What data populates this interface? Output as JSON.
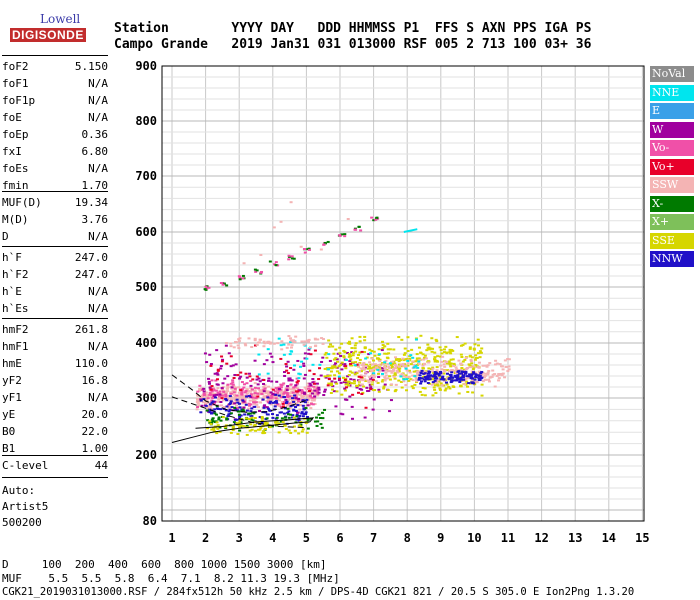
{
  "logo": {
    "brand": "Lowell",
    "product": "DIGISONDE"
  },
  "header": {
    "labels_line": "Station        YYYY DAY   DDD HHMMSS P1  FFS S AXN PPS IGA PS",
    "values_line": "Campo Grande   2019 Jan31 031 013000 RSF 005 2 713 100 03+ 36"
  },
  "params": {
    "group1": [
      {
        "name": "foF2",
        "value": "5.150"
      },
      {
        "name": "foF1",
        "value": "N/A"
      },
      {
        "name": "foF1p",
        "value": "N/A"
      },
      {
        "name": "foE",
        "value": "N/A"
      },
      {
        "name": "foEp",
        "value": "0.36"
      },
      {
        "name": "fxI",
        "value": "6.80"
      },
      {
        "name": "foEs",
        "value": "N/A"
      },
      {
        "name": "fmin",
        "value": "1.70"
      }
    ],
    "group2": [
      {
        "name": "MUF(D)",
        "value": "19.34"
      },
      {
        "name": "M(D)",
        "value": "3.76"
      },
      {
        "name": "D",
        "value": "N/A"
      }
    ],
    "group3": [
      {
        "name": "h`F",
        "value": "247.0"
      },
      {
        "name": "h`F2",
        "value": "247.0"
      },
      {
        "name": "h`E",
        "value": "N/A"
      },
      {
        "name": "h`Es",
        "value": "N/A"
      }
    ],
    "group4": [
      {
        "name": "hmF2",
        "value": "261.8"
      },
      {
        "name": "hmF1",
        "value": "N/A"
      },
      {
        "name": "hmE",
        "value": "110.0"
      },
      {
        "name": "yF2",
        "value": "16.8"
      },
      {
        "name": "yF1",
        "value": "N/A"
      },
      {
        "name": "yE",
        "value": "20.0"
      },
      {
        "name": "B0",
        "value": "22.0"
      },
      {
        "name": "B1",
        "value": "1.00"
      }
    ],
    "group5": [
      {
        "name": "C-level",
        "value": "44"
      }
    ],
    "auto": [
      "Auto:",
      "Artist5",
      "500200"
    ]
  },
  "legend": [
    {
      "label": "NoVal",
      "color": "#8c8c8c"
    },
    {
      "label": "NNE",
      "color": "#00e5ee"
    },
    {
      "label": "E",
      "color": "#3aa0e8"
    },
    {
      "label": "W",
      "color": "#a0009e"
    },
    {
      "label": "Vo-",
      "color": "#f050a8"
    },
    {
      "label": "Vo+",
      "color": "#e8002a"
    },
    {
      "label": "SSW",
      "color": "#f4b4b4"
    },
    {
      "label": "X-",
      "color": "#007a00"
    },
    {
      "label": "X+",
      "color": "#7ec05a"
    },
    {
      "label": "SSE",
      "color": "#d6d600"
    },
    {
      "label": "NNW",
      "color": "#2010c8"
    }
  ],
  "footer": {
    "line1": "D     100  200  400  600  800 1000 1500 3000 [km]",
    "line2": "MUF    5.5  5.5  5.8  6.4  7.1  8.2 11.3 19.3 [MHz]",
    "line3": "CGK21_2019031013000.RSF / 284fx512h 50 kHz 2.5 km / DPS-4D CGK21 821 / 20.5 S 305.0 E Ion2Png 1.3.20"
  },
  "chart_data": {
    "type": "scatter",
    "title": "",
    "xlabel": "",
    "ylabel": "",
    "xlim": [
      1,
      15
    ],
    "ylim": [
      80,
      900
    ],
    "xticks": [
      1,
      2,
      3,
      4,
      5,
      6,
      7,
      8,
      9,
      10,
      11,
      12,
      13,
      14,
      15
    ],
    "yticks": [
      80,
      200,
      300,
      400,
      500,
      600,
      700,
      800,
      900
    ],
    "grid": true,
    "clusters": [
      {
        "series": "SSW",
        "x": [
          1.7,
          5.3
        ],
        "y": [
          280,
          330
        ],
        "n": 420
      },
      {
        "series": "Vo-",
        "x": [
          1.7,
          5.3
        ],
        "y": [
          280,
          340
        ],
        "n": 160
      },
      {
        "series": "W",
        "x": [
          1.8,
          7.5
        ],
        "y": [
          260,
          400
        ],
        "n": 200
      },
      {
        "series": "NNW",
        "x": [
          1.8,
          5.0
        ],
        "y": [
          250,
          310
        ],
        "n": 140
      },
      {
        "series": "SSE",
        "x": [
          5.5,
          10.2
        ],
        "y": [
          300,
          420
        ],
        "n": 450
      },
      {
        "series": "SSW",
        "x": [
          6.5,
          11.0
        ],
        "y": [
          320,
          380
        ],
        "n": 260
      },
      {
        "series": "NNW",
        "x": [
          8.3,
          10.2
        ],
        "y": [
          325,
          355
        ],
        "n": 130
      },
      {
        "series": "X-",
        "x": [
          2.0,
          5.5
        ],
        "y": [
          240,
          290
        ],
        "n": 80
      },
      {
        "series": "SSE",
        "x": [
          2.0,
          5.0
        ],
        "y": [
          235,
          270
        ],
        "n": 90
      },
      {
        "series": "Vo+",
        "x": [
          2.0,
          7.0
        ],
        "y": [
          270,
          400
        ],
        "n": 60
      },
      {
        "series": "NNE",
        "x": [
          3.5,
          8.5
        ],
        "y": [
          330,
          420
        ],
        "n": 50
      },
      {
        "series": "SSW",
        "x": [
          2.5,
          5.5
        ],
        "y": [
          390,
          415
        ],
        "n": 60
      }
    ],
    "multihop_trace": {
      "series": "X-",
      "x": [
        2.0,
        2.5,
        3.0,
        3.5,
        4.0,
        4.5,
        5.0,
        5.5,
        6.0,
        6.5,
        7.0
      ],
      "y": [
        500,
        508,
        518,
        530,
        545,
        555,
        568,
        580,
        595,
        608,
        625
      ]
    },
    "oblique_segment": {
      "series": "NNE",
      "x": [
        7.9,
        8.3
      ],
      "y": [
        600,
        605
      ]
    },
    "oblique_points": {
      "series": "SSW",
      "x": [
        3.1,
        3.6,
        4.0,
        4.2,
        4.5,
        4.8,
        5.4,
        6.2
      ],
      "y": [
        545,
        560,
        610,
        620,
        655,
        575,
        570,
        625
      ]
    },
    "curves": [
      {
        "name": "profile",
        "style": "solid",
        "x": [
          1.0,
          1.6,
          2.2,
          3.0,
          3.8,
          4.6,
          5.1,
          5.2,
          4.5,
          3.5,
          2.5,
          1.7
        ],
        "y": [
          222,
          231,
          240,
          247,
          251,
          256,
          258,
          265,
          262,
          258,
          250,
          247
        ]
      },
      {
        "name": "model-upper",
        "style": "dashed",
        "x": [
          1.0,
          1.6,
          2.0,
          2.6,
          3.2,
          3.8,
          4.4,
          5.0
        ],
        "y": [
          342,
          315,
          295,
          280,
          275,
          276,
          284,
          296
        ]
      },
      {
        "name": "model-lower",
        "style": "dashed",
        "x": [
          1.0,
          1.8,
          2.6,
          3.4,
          4.2,
          5.0
        ],
        "y": [
          302,
          286,
          270,
          257,
          250,
          248
        ]
      }
    ],
    "legend_position": "right"
  }
}
